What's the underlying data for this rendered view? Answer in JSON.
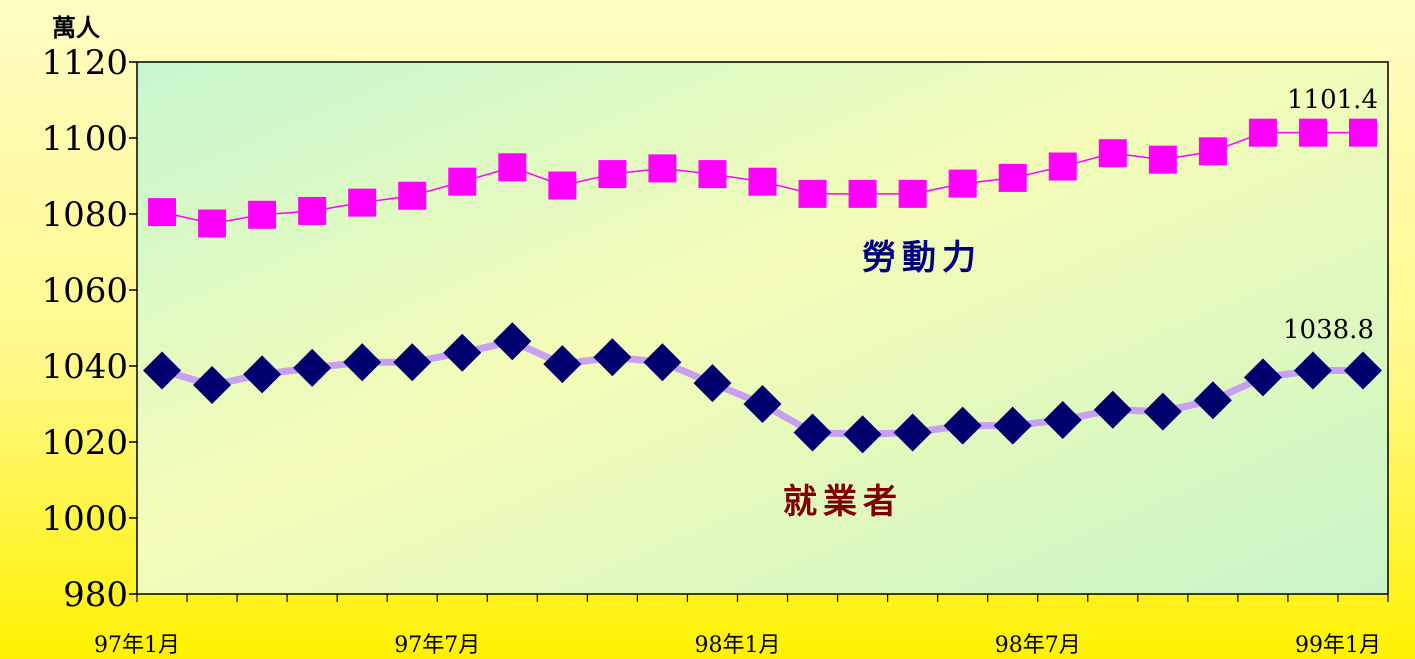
{
  "chart_data": {
    "type": "line",
    "unit_label": "萬人",
    "ylim": [
      980,
      1120
    ],
    "yticks": [
      980,
      1000,
      1020,
      1040,
      1060,
      1080,
      1100,
      1120
    ],
    "x_labels": [
      {
        "index": 0,
        "label": "97年1月"
      },
      {
        "index": 6,
        "label": "97年7月"
      },
      {
        "index": 12,
        "label": "98年1月"
      },
      {
        "index": 18,
        "label": "98年7月"
      },
      {
        "index": 24,
        "label": "99年1月"
      }
    ],
    "n_points": 25,
    "series": [
      {
        "name": "勞動力",
        "color": "#ff00ff",
        "label_color": "#000080",
        "marker": "square",
        "values": [
          1080.5,
          1077.5,
          1079.8,
          1080.8,
          1083.0,
          1084.8,
          1088.5,
          1092.3,
          1087.5,
          1090.5,
          1092.0,
          1090.5,
          1088.5,
          1085.3,
          1085.3,
          1085.3,
          1088.0,
          1089.5,
          1092.5,
          1096.0,
          1094.3,
          1096.5,
          1101.4,
          1101.4,
          1101.4
        ],
        "end_label": "1101.4"
      },
      {
        "name": "就業者",
        "color": "#c8a0f0",
        "marker_color": "#00006e",
        "label_color": "#800000",
        "marker": "diamond",
        "values": [
          1038.8,
          1035.0,
          1037.8,
          1039.5,
          1041.0,
          1041.0,
          1043.5,
          1046.5,
          1040.5,
          1042.3,
          1041.0,
          1035.5,
          1030.0,
          1022.5,
          1022.0,
          1022.5,
          1024.3,
          1024.3,
          1025.8,
          1028.5,
          1028.0,
          1031.0,
          1037.0,
          1038.8,
          1038.8
        ],
        "end_label": "1038.8"
      }
    ]
  }
}
